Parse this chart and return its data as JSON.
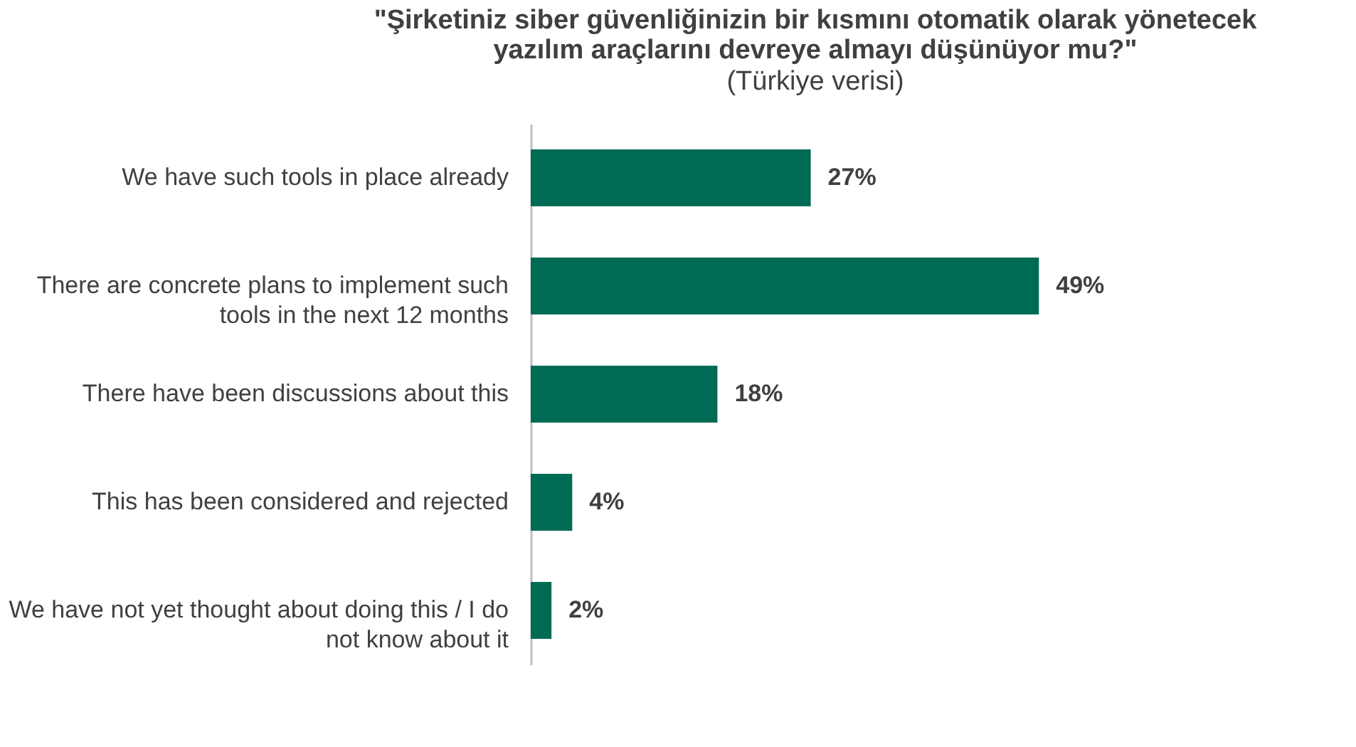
{
  "chart_data": {
    "type": "bar",
    "orientation": "horizontal",
    "title": "\"Şirketiniz siber güvenliğinizin bir kısmını otomatik olarak yönetecek yazılım araçlarını devreye almayı düşünüyor mu?\"",
    "subtitle": "(Türkiye verisi)",
    "categories": [
      "We have such tools in place already",
      "There are concrete plans to implement such tools in the next 12 months",
      "There have been discussions about this",
      "This has been considered and rejected",
      "We have not yet thought about doing this / I do not know about it"
    ],
    "values": [
      27,
      49,
      18,
      4,
      2
    ],
    "value_labels": [
      "27%",
      "49%",
      "18%",
      "4%",
      "2%"
    ],
    "color": "#006b54",
    "grid": false
  }
}
